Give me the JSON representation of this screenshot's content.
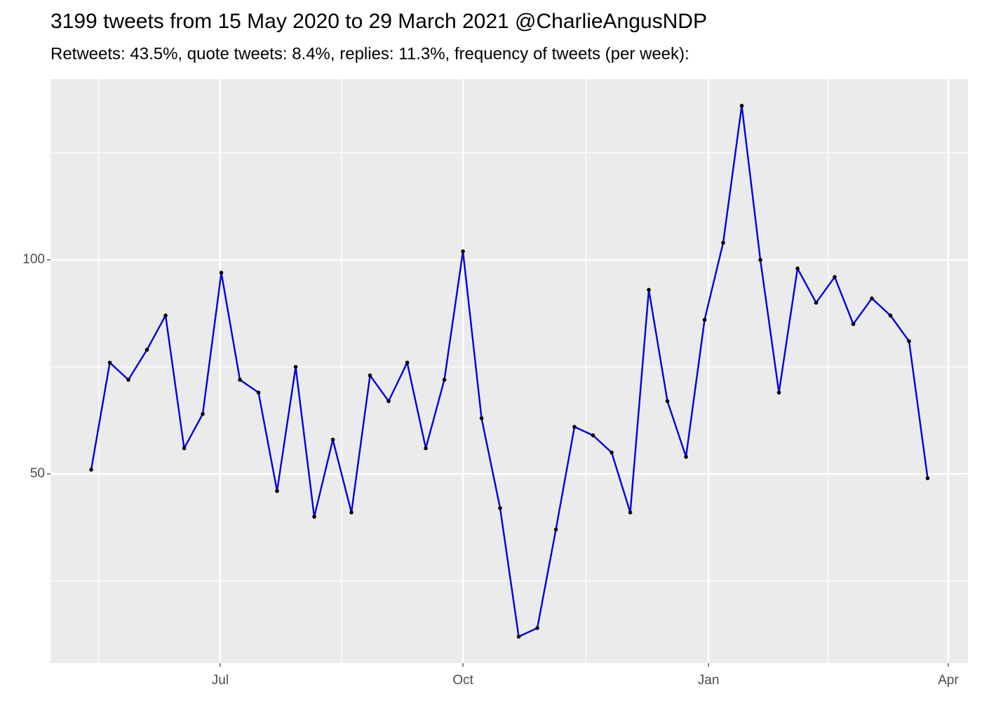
{
  "chart_data": {
    "type": "line",
    "title": "3199 tweets from 15 May 2020 to 29 March 2021 @CharlieAngusNDP",
    "subtitle": "Retweets: 43.5%, quote tweets: 8.4%, replies: 11.3%, frequency of tweets (per week):",
    "x": [
      0,
      1,
      2,
      3,
      4,
      5,
      6,
      7,
      8,
      9,
      10,
      11,
      12,
      13,
      14,
      15,
      16,
      17,
      18,
      19,
      20,
      21,
      22,
      23,
      24,
      25,
      26,
      27,
      28,
      29,
      30,
      31,
      32,
      33,
      34,
      35,
      36,
      37,
      38,
      39,
      40,
      41,
      42,
      43,
      44,
      45
    ],
    "series": [
      {
        "color": "#0000e0",
        "values": [
          51,
          76,
          72,
          79,
          87,
          56,
          64,
          97,
          72,
          69,
          46,
          75,
          40,
          58,
          41,
          73,
          67,
          76,
          56,
          72,
          102,
          63,
          42,
          12,
          14,
          37,
          61,
          59,
          55,
          41,
          93,
          67,
          54,
          86,
          104,
          136,
          100,
          69,
          98,
          90,
          96,
          85,
          91,
          87,
          81,
          49
        ]
      }
    ],
    "point_color": "#000000",
    "xlim": [
      -2.19,
      47.17
    ],
    "xticks": [
      {
        "value": 6.94,
        "label": "Jul"
      },
      {
        "value": 20.0,
        "label": "Oct"
      },
      {
        "value": 33.21,
        "label": "Jan"
      },
      {
        "value": 46.11,
        "label": "Apr"
      }
    ],
    "ylim": [
      5.8,
      142.2
    ],
    "yticks": [
      50,
      100
    ],
    "grid": true
  }
}
